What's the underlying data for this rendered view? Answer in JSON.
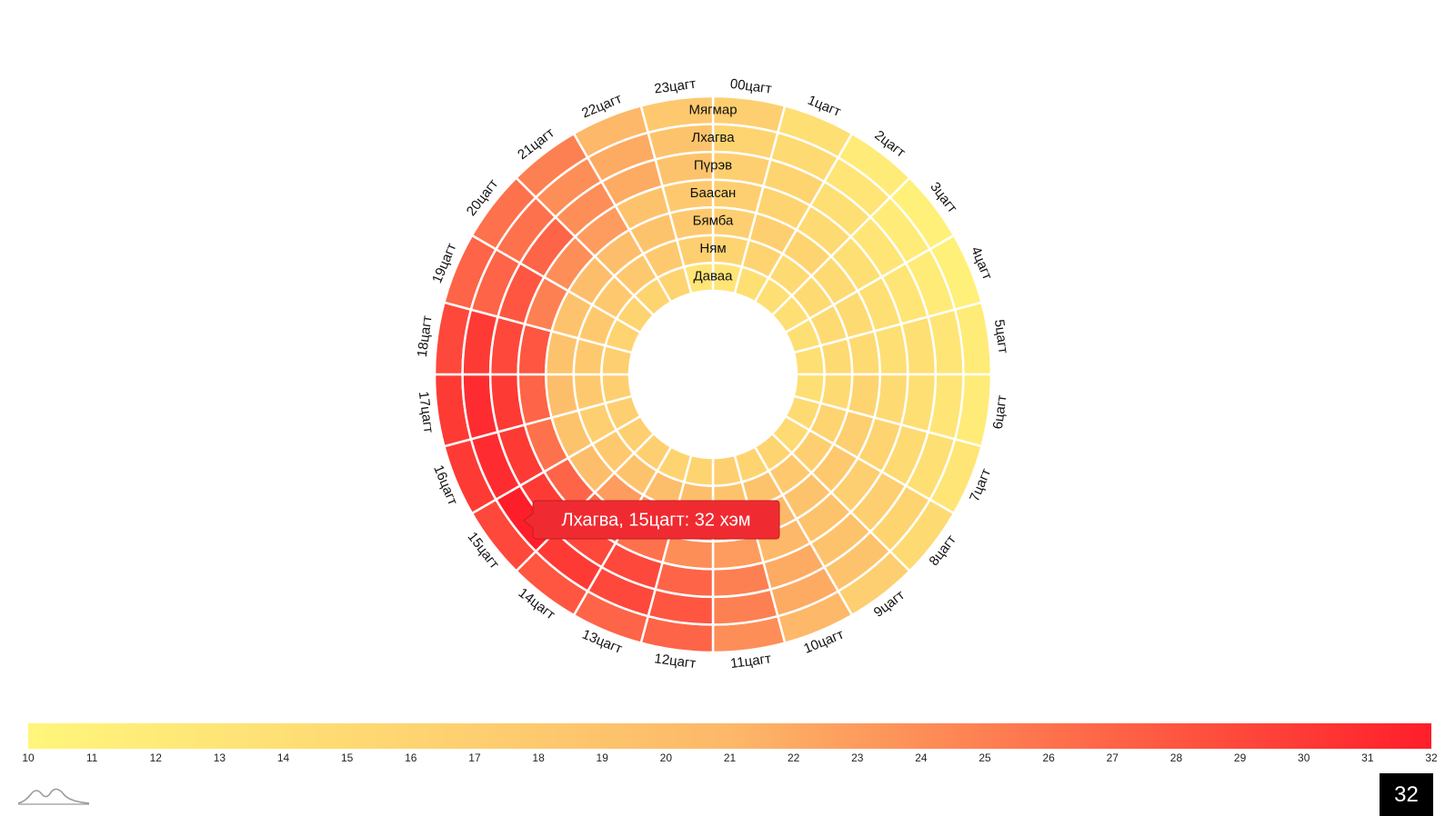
{
  "chart_data": {
    "type": "heatmap",
    "layout": "radial",
    "hours": [
      "00цагт",
      "1цагт",
      "2цагт",
      "3цагт",
      "4цагт",
      "5цагт",
      "6цагт",
      "7цагт",
      "8цагт",
      "9цагт",
      "10цагт",
      "11цагт",
      "12цагт",
      "13цагт",
      "14цагт",
      "15цагт",
      "16цагт",
      "17цагт",
      "18цагт",
      "19цагт",
      "20цагт",
      "21цагт",
      "22цагт",
      "23цагт"
    ],
    "days": [
      "Мягмар",
      "Лхагва",
      "Пүрэв",
      "Баасан",
      "Бямба",
      "Ням",
      "Даваа"
    ],
    "values": [
      [
        17,
        14,
        12,
        11,
        11,
        12,
        12,
        13,
        15,
        17,
        21,
        24,
        27,
        27,
        28,
        29,
        30,
        30,
        29,
        27,
        26,
        25,
        21,
        18
      ],
      [
        16,
        15,
        13,
        12,
        12,
        13,
        13,
        14,
        16,
        19,
        22,
        25,
        28,
        29,
        30,
        32,
        31,
        31,
        30,
        27,
        26,
        24,
        22,
        19
      ],
      [
        17,
        16,
        14,
        13,
        13,
        14,
        14,
        15,
        17,
        19,
        22,
        25,
        27,
        29,
        29,
        30,
        30,
        30,
        29,
        28,
        27,
        24,
        22,
        19
      ],
      [
        17,
        16,
        15,
        14,
        14,
        14,
        15,
        16,
        17,
        19,
        21,
        23,
        24,
        26,
        27,
        27,
        26,
        27,
        28,
        25,
        24,
        23,
        19,
        18
      ],
      [
        17,
        17,
        16,
        15,
        15,
        15,
        16,
        17,
        18,
        19,
        21,
        22,
        23,
        24,
        23,
        20,
        19,
        20,
        19,
        19,
        20,
        20,
        19,
        18
      ],
      [
        16,
        16,
        15,
        15,
        15,
        15,
        15,
        16,
        17,
        18,
        19,
        19,
        20,
        20,
        19,
        18,
        17,
        18,
        18,
        18,
        18,
        18,
        18,
        17
      ],
      [
        13,
        14,
        14,
        14,
        14,
        14,
        14,
        15,
        15,
        16,
        16,
        17,
        16,
        16,
        17,
        17,
        17,
        17,
        17,
        16,
        16,
        16,
        16,
        13
      ]
    ],
    "color_scale": {
      "min": 10,
      "max": 32,
      "min_color": "#fff67b",
      "mid_color": "#fdb869",
      "max_color": "#fe1e2a",
      "ticks": [
        "10",
        "11",
        "12",
        "13",
        "14",
        "15",
        "16",
        "17",
        "18",
        "19",
        "20",
        "21",
        "22",
        "23",
        "24",
        "25",
        "26",
        "27",
        "28",
        "29",
        "30",
        "31",
        "32"
      ]
    },
    "tooltip": {
      "text": "Лхагва, 15цагт: 32 хэм",
      "day_index": 1,
      "hour_index": 15
    }
  },
  "page_number": "32"
}
